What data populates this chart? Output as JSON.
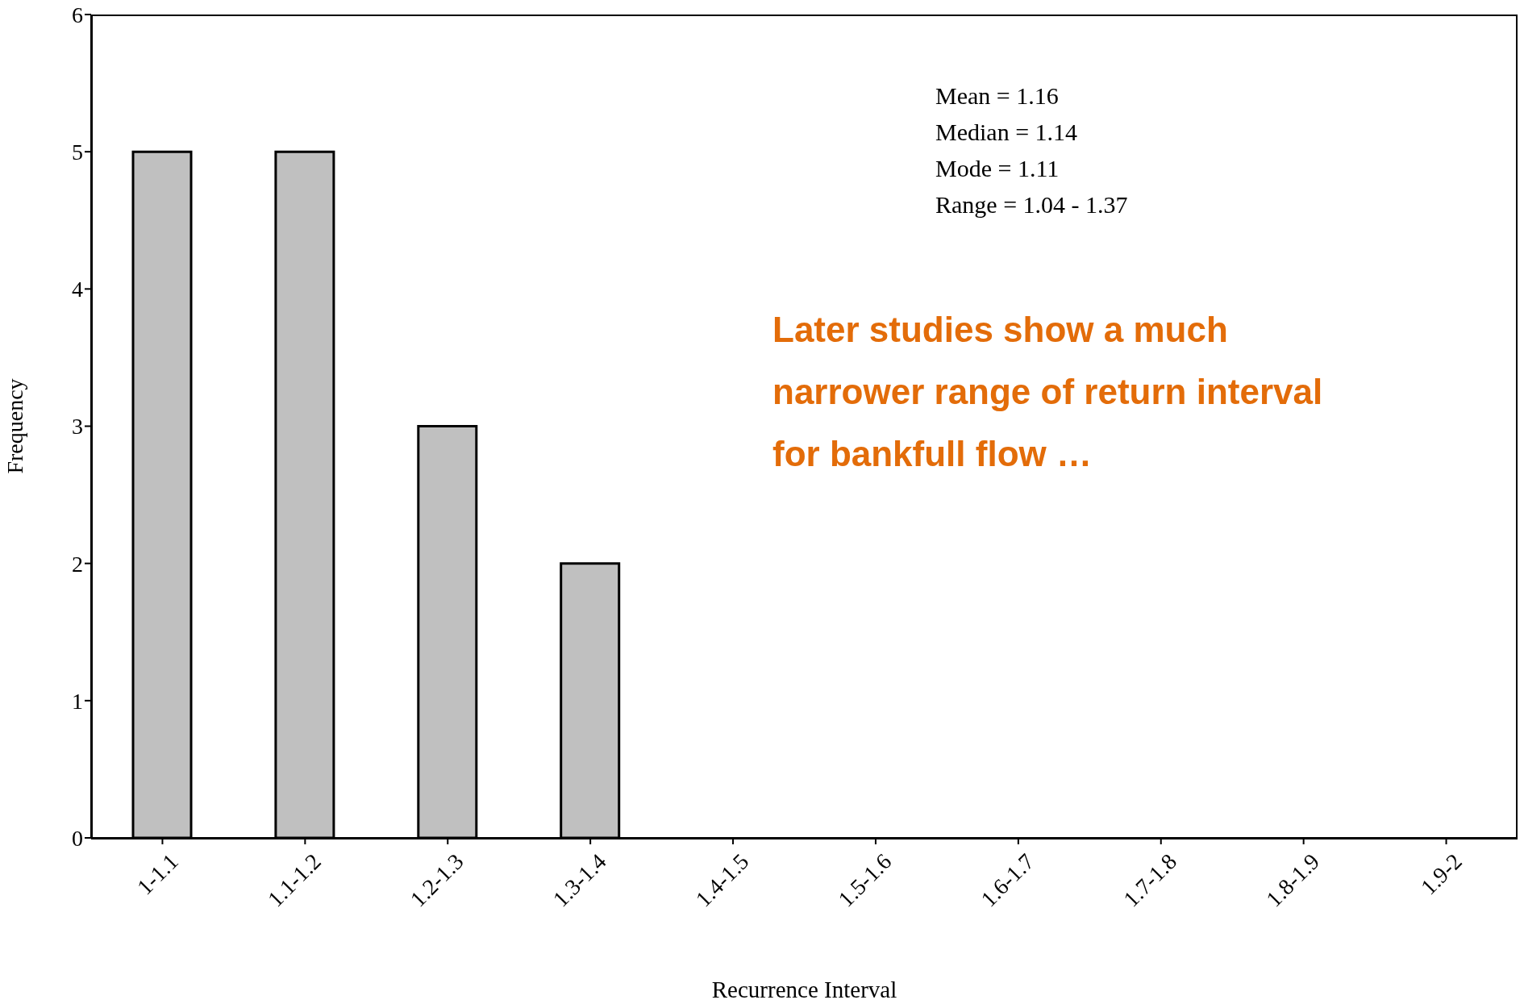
{
  "chart_data": {
    "type": "bar",
    "xlabel": "Recurrence Interval",
    "ylabel": "Frequency",
    "categories": [
      "1-1.1",
      "1.1-1.2",
      "1.2-1.3",
      "1.3-1.4",
      "1.4-1.5",
      "1.5-1.6",
      "1.6-1.7",
      "1.7-1.8",
      "1.8-1.9",
      "1.9-2"
    ],
    "values": [
      5,
      5,
      3,
      2,
      0,
      0,
      0,
      0,
      0,
      0
    ],
    "color": "#c0c0c0",
    "ylim": [
      0,
      6
    ],
    "yticks": [
      0,
      1,
      2,
      3,
      4,
      5,
      6
    ],
    "annotations": [
      "Mean = 1.16",
      "Median = 1.14",
      "Mode = 1.11",
      "Range = 1.04 - 1.37",
      "Later studies show a much narrower range of return interval for bankfull flow …"
    ]
  }
}
